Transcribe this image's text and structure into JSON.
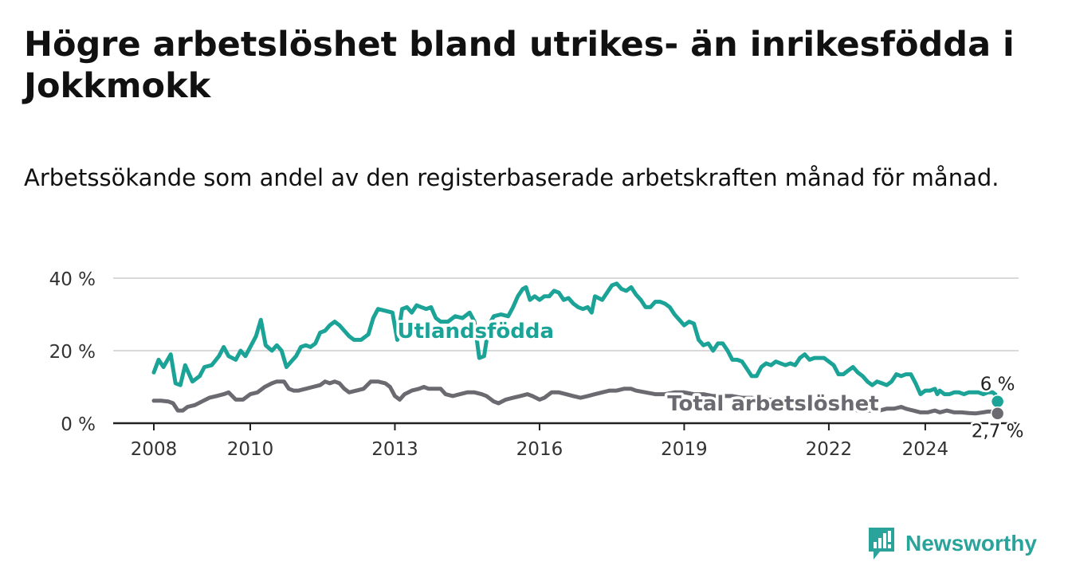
{
  "title": "Högre arbetslöshet bland utrikes- än inrikesfödda i Jokkmokk",
  "subtitle": "Arbetssökande som andel av den registerbaserade arbetskraften månad för månad.",
  "brand": {
    "name": "Newsworthy",
    "color": "#2aa39b",
    "logo_icon": "bar-chart-logo-icon"
  },
  "chart_data": {
    "type": "line",
    "x_unit": "year",
    "xlim": [
      2008,
      2024.58
    ],
    "ylim": [
      0,
      40
    ],
    "yticks": [
      0,
      20,
      40
    ],
    "ytick_labels": [
      "0 %",
      "20 %",
      "40 %"
    ],
    "xticks": [
      2008,
      2010,
      2013,
      2016,
      2019,
      2022,
      2024
    ],
    "xtick_labels": [
      "2008",
      "2010",
      "2013",
      "2016",
      "2019",
      "2022",
      "2024"
    ],
    "grid": true,
    "series": [
      {
        "name": "Utlandsfödda",
        "color": "#1aa396",
        "end_label": "6 %",
        "points": [
          [
            2008.0,
            14
          ],
          [
            2008.1,
            17.5
          ],
          [
            2008.2,
            15.5
          ],
          [
            2008.35,
            19
          ],
          [
            2008.45,
            11
          ],
          [
            2008.55,
            10.5
          ],
          [
            2008.65,
            16
          ],
          [
            2008.8,
            11.5
          ],
          [
            2008.95,
            13
          ],
          [
            2009.05,
            15.5
          ],
          [
            2009.2,
            16
          ],
          [
            2009.35,
            18.5
          ],
          [
            2009.45,
            21
          ],
          [
            2009.55,
            18.5
          ],
          [
            2009.7,
            17.5
          ],
          [
            2009.8,
            20
          ],
          [
            2009.9,
            18.5
          ],
          [
            2010.0,
            21
          ],
          [
            2010.12,
            24
          ],
          [
            2010.22,
            28.5
          ],
          [
            2010.32,
            21.5
          ],
          [
            2010.45,
            20
          ],
          [
            2010.55,
            21.5
          ],
          [
            2010.65,
            20
          ],
          [
            2010.75,
            15.5
          ],
          [
            2010.85,
            17
          ],
          [
            2010.95,
            18.5
          ],
          [
            2011.05,
            21
          ],
          [
            2011.15,
            21.5
          ],
          [
            2011.25,
            21
          ],
          [
            2011.35,
            22
          ],
          [
            2011.45,
            25
          ],
          [
            2011.55,
            25.5
          ],
          [
            2011.65,
            27
          ],
          [
            2011.75,
            28
          ],
          [
            2011.85,
            27
          ],
          [
            2011.95,
            25.5
          ],
          [
            2012.05,
            24
          ],
          [
            2012.15,
            23
          ],
          [
            2012.3,
            23
          ],
          [
            2012.45,
            24.5
          ],
          [
            2012.55,
            29
          ],
          [
            2012.65,
            31.5
          ],
          [
            2012.8,
            31
          ],
          [
            2012.95,
            30.5
          ],
          [
            2013.05,
            23
          ],
          [
            2013.15,
            31.5
          ],
          [
            2013.25,
            32
          ],
          [
            2013.35,
            30.5
          ],
          [
            2013.45,
            32.5
          ],
          [
            2013.55,
            32
          ],
          [
            2013.65,
            31.5
          ],
          [
            2013.75,
            32
          ],
          [
            2013.85,
            29
          ],
          [
            2013.95,
            28
          ],
          [
            2014.1,
            28
          ],
          [
            2014.25,
            29.5
          ],
          [
            2014.4,
            29
          ],
          [
            2014.55,
            30.5
          ],
          [
            2014.65,
            28
          ],
          [
            2014.75,
            18
          ],
          [
            2014.85,
            18.5
          ],
          [
            2014.95,
            27
          ],
          [
            2015.05,
            29.5
          ],
          [
            2015.2,
            30
          ],
          [
            2015.35,
            29.5
          ],
          [
            2015.45,
            32
          ],
          [
            2015.55,
            35
          ],
          [
            2015.65,
            37
          ],
          [
            2015.72,
            37.5
          ],
          [
            2015.8,
            34
          ],
          [
            2015.9,
            35
          ],
          [
            2016.0,
            34
          ],
          [
            2016.1,
            35
          ],
          [
            2016.2,
            35
          ],
          [
            2016.3,
            36.5
          ],
          [
            2016.4,
            36
          ],
          [
            2016.5,
            34
          ],
          [
            2016.6,
            34.5
          ],
          [
            2016.7,
            33
          ],
          [
            2016.8,
            32
          ],
          [
            2016.9,
            31.5
          ],
          [
            2017.0,
            32
          ],
          [
            2017.08,
            30.5
          ],
          [
            2017.15,
            35
          ],
          [
            2017.3,
            34
          ],
          [
            2017.4,
            36
          ],
          [
            2017.5,
            38
          ],
          [
            2017.6,
            38.5
          ],
          [
            2017.7,
            37
          ],
          [
            2017.8,
            36.5
          ],
          [
            2017.9,
            37.5
          ],
          [
            2018.0,
            35.5
          ],
          [
            2018.1,
            34
          ],
          [
            2018.2,
            32
          ],
          [
            2018.3,
            32
          ],
          [
            2018.4,
            33.5
          ],
          [
            2018.5,
            33.5
          ],
          [
            2018.6,
            33
          ],
          [
            2018.7,
            32
          ],
          [
            2018.8,
            30
          ],
          [
            2018.9,
            28.5
          ],
          [
            2019.0,
            27
          ],
          [
            2019.1,
            28
          ],
          [
            2019.2,
            27.5
          ],
          [
            2019.3,
            23
          ],
          [
            2019.4,
            21.5
          ],
          [
            2019.5,
            22
          ],
          [
            2019.6,
            20
          ],
          [
            2019.7,
            22
          ],
          [
            2019.8,
            22
          ],
          [
            2019.9,
            20
          ],
          [
            2020.0,
            17.5
          ],
          [
            2020.1,
            17.5
          ],
          [
            2020.2,
            17
          ],
          [
            2020.3,
            15
          ],
          [
            2020.4,
            13
          ],
          [
            2020.5,
            13
          ],
          [
            2020.6,
            15.5
          ],
          [
            2020.7,
            16.5
          ],
          [
            2020.8,
            16
          ],
          [
            2020.9,
            17
          ],
          [
            2021.0,
            16.5
          ],
          [
            2021.1,
            16
          ],
          [
            2021.2,
            16.5
          ],
          [
            2021.3,
            16
          ],
          [
            2021.4,
            18
          ],
          [
            2021.5,
            19
          ],
          [
            2021.6,
            17.5
          ],
          [
            2021.7,
            18
          ],
          [
            2021.8,
            18
          ],
          [
            2021.9,
            18
          ],
          [
            2022.0,
            17
          ],
          [
            2022.1,
            16
          ],
          [
            2022.2,
            13.5
          ],
          [
            2022.3,
            13.5
          ],
          [
            2022.4,
            14.5
          ],
          [
            2022.5,
            15.5
          ],
          [
            2022.6,
            14
          ],
          [
            2022.7,
            13
          ],
          [
            2022.8,
            11.5
          ],
          [
            2022.9,
            10.5
          ],
          [
            2023.0,
            11.5
          ],
          [
            2023.1,
            11
          ],
          [
            2023.2,
            10.5
          ],
          [
            2023.3,
            11.5
          ],
          [
            2023.4,
            13.5
          ],
          [
            2023.5,
            13
          ],
          [
            2023.6,
            13.5
          ],
          [
            2023.7,
            13.5
          ],
          [
            2023.8,
            11
          ],
          [
            2023.9,
            8
          ],
          [
            2024.0,
            9
          ],
          [
            2024.1,
            9
          ],
          [
            2024.2,
            9.5
          ],
          [
            2024.25,
            8
          ],
          [
            2024.3,
            9
          ],
          [
            2024.4,
            8
          ],
          [
            2024.5,
            8
          ],
          [
            2024.6,
            8.5
          ],
          [
            2024.7,
            8.5
          ],
          [
            2024.8,
            8
          ],
          [
            2024.9,
            8.5
          ],
          [
            2025.0,
            8.5
          ],
          [
            2025.1,
            8.5
          ],
          [
            2025.2,
            8
          ],
          [
            2025.3,
            8.5
          ],
          [
            2025.4,
            8.5
          ],
          [
            2025.45,
            8
          ],
          [
            2025.5,
            6
          ]
        ]
      },
      {
        "name": "Total arbetslöshet",
        "color": "#6b6a70",
        "end_label": "2,7 %",
        "points": [
          [
            2008.0,
            6.2
          ],
          [
            2008.15,
            6.2
          ],
          [
            2008.3,
            6
          ],
          [
            2008.4,
            5.5
          ],
          [
            2008.5,
            3.5
          ],
          [
            2008.6,
            3.5
          ],
          [
            2008.7,
            4.5
          ],
          [
            2008.85,
            5
          ],
          [
            2009.0,
            6
          ],
          [
            2009.15,
            7
          ],
          [
            2009.3,
            7.5
          ],
          [
            2009.45,
            8
          ],
          [
            2009.55,
            8.5
          ],
          [
            2009.7,
            6.5
          ],
          [
            2009.85,
            6.5
          ],
          [
            2010.0,
            8
          ],
          [
            2010.15,
            8.5
          ],
          [
            2010.3,
            10
          ],
          [
            2010.45,
            11
          ],
          [
            2010.55,
            11.5
          ],
          [
            2010.7,
            11.5
          ],
          [
            2010.8,
            9.5
          ],
          [
            2010.9,
            9
          ],
          [
            2011.0,
            9
          ],
          [
            2011.15,
            9.5
          ],
          [
            2011.3,
            10
          ],
          [
            2011.45,
            10.5
          ],
          [
            2011.55,
            11.5
          ],
          [
            2011.65,
            11
          ],
          [
            2011.75,
            11.5
          ],
          [
            2011.85,
            11
          ],
          [
            2011.95,
            9.5
          ],
          [
            2012.05,
            8.5
          ],
          [
            2012.2,
            9
          ],
          [
            2012.35,
            9.5
          ],
          [
            2012.5,
            11.5
          ],
          [
            2012.65,
            11.5
          ],
          [
            2012.8,
            11
          ],
          [
            2012.9,
            10
          ],
          [
            2013.0,
            7.5
          ],
          [
            2013.1,
            6.5
          ],
          [
            2013.2,
            8
          ],
          [
            2013.35,
            9
          ],
          [
            2013.5,
            9.5
          ],
          [
            2013.6,
            10
          ],
          [
            2013.7,
            9.5
          ],
          [
            2013.85,
            9.5
          ],
          [
            2013.95,
            9.5
          ],
          [
            2014.05,
            8
          ],
          [
            2014.2,
            7.5
          ],
          [
            2014.35,
            8
          ],
          [
            2014.5,
            8.5
          ],
          [
            2014.65,
            8.5
          ],
          [
            2014.8,
            8
          ],
          [
            2014.9,
            7.5
          ],
          [
            2015.05,
            6
          ],
          [
            2015.15,
            5.5
          ],
          [
            2015.3,
            6.5
          ],
          [
            2015.45,
            7
          ],
          [
            2015.6,
            7.5
          ],
          [
            2015.75,
            8
          ],
          [
            2015.85,
            7.5
          ],
          [
            2016.0,
            6.5
          ],
          [
            2016.1,
            7
          ],
          [
            2016.25,
            8.5
          ],
          [
            2016.4,
            8.5
          ],
          [
            2016.55,
            8
          ],
          [
            2016.7,
            7.5
          ],
          [
            2016.85,
            7
          ],
          [
            2017.0,
            7.5
          ],
          [
            2017.15,
            8
          ],
          [
            2017.3,
            8.5
          ],
          [
            2017.45,
            9
          ],
          [
            2017.6,
            9
          ],
          [
            2017.75,
            9.5
          ],
          [
            2017.9,
            9.5
          ],
          [
            2018.0,
            9
          ],
          [
            2018.2,
            8.5
          ],
          [
            2018.4,
            8
          ],
          [
            2018.6,
            8
          ],
          [
            2018.8,
            8.5
          ],
          [
            2019.0,
            8.5
          ],
          [
            2019.2,
            8
          ],
          [
            2019.4,
            8
          ],
          [
            2019.6,
            7.5
          ],
          [
            2019.8,
            7.5
          ],
          [
            2020.0,
            7.5
          ],
          [
            2020.2,
            7
          ],
          [
            2020.4,
            7
          ],
          [
            2020.6,
            6.5
          ],
          [
            2020.8,
            6.5
          ],
          [
            2021.0,
            6.5
          ],
          [
            2021.2,
            6.5
          ],
          [
            2021.4,
            6
          ],
          [
            2021.6,
            5.5
          ],
          [
            2021.8,
            5.5
          ],
          [
            2022.0,
            5
          ],
          [
            2022.15,
            4.5
          ],
          [
            2022.3,
            4
          ],
          [
            2022.45,
            4
          ],
          [
            2022.6,
            3.5
          ],
          [
            2022.75,
            3.5
          ],
          [
            2022.9,
            3.5
          ],
          [
            2023.05,
            3.5
          ],
          [
            2023.2,
            4
          ],
          [
            2023.35,
            4
          ],
          [
            2023.5,
            4.5
          ],
          [
            2023.6,
            4
          ],
          [
            2023.75,
            3.5
          ],
          [
            2023.9,
            3
          ],
          [
            2024.05,
            3
          ],
          [
            2024.2,
            3.5
          ],
          [
            2024.3,
            3
          ],
          [
            2024.45,
            3.5
          ],
          [
            2024.6,
            3
          ],
          [
            2024.75,
            3
          ],
          [
            2024.9,
            2.8
          ],
          [
            2025.05,
            2.7
          ],
          [
            2025.2,
            3
          ],
          [
            2025.3,
            3.2
          ],
          [
            2025.4,
            3.2
          ],
          [
            2025.5,
            2.7
          ]
        ]
      }
    ],
    "inline_labels": [
      {
        "series": 0,
        "text": "Utlandsfödda",
        "x": 2013.05,
        "y": 25.5
      },
      {
        "series": 1,
        "text": "Total arbetslöshet",
        "x": 2018.65,
        "y": 5.5
      }
    ]
  }
}
